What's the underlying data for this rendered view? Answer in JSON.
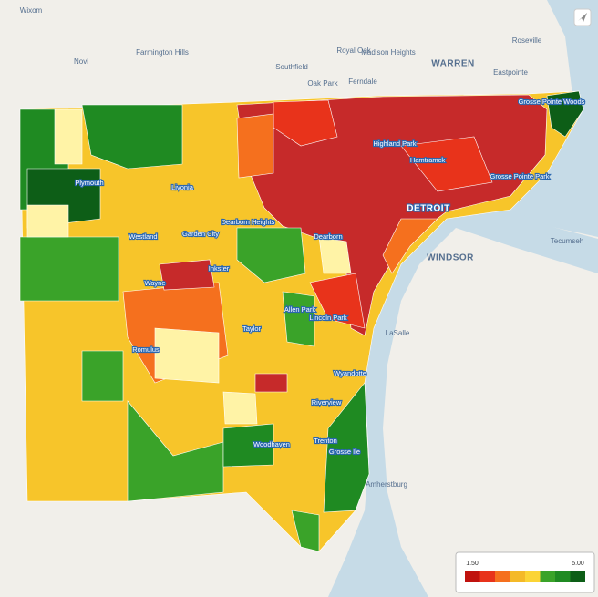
{
  "map": {
    "labels": [
      "Wixom",
      "Farmington Hills",
      "Novi",
      "Southfield",
      "Royal Oak",
      "Madison Heights",
      "WARREN",
      "Roseville",
      "Eastpointe",
      "Oak Park",
      "Ferndale",
      "Grosse Pointe Woods",
      "Highland Park",
      "Hamtramck",
      "Grosse Pointe Park",
      "DETROIT",
      "Plymouth",
      "Livonia",
      "Dearborn Heights",
      "Westland",
      "Garden City",
      "Dearborn",
      "WINDSOR",
      "Tecumseh",
      "Inkster",
      "Wayne",
      "Allen Park",
      "Lincoln Park",
      "Taylor",
      "Romulus",
      "LaSalle",
      "Wyandotte",
      "Riverview",
      "Woodhaven",
      "Trenton",
      "Grosse Ile",
      "Amherstburg"
    ]
  },
  "legend": {
    "min": "1.50",
    "max": "5.00",
    "colors": [
      "#c0120e",
      "#e8331b",
      "#f5701e",
      "#f4b928",
      "#fbd435",
      "#3aa329",
      "#1f8a22",
      "#0d5e17"
    ]
  }
}
